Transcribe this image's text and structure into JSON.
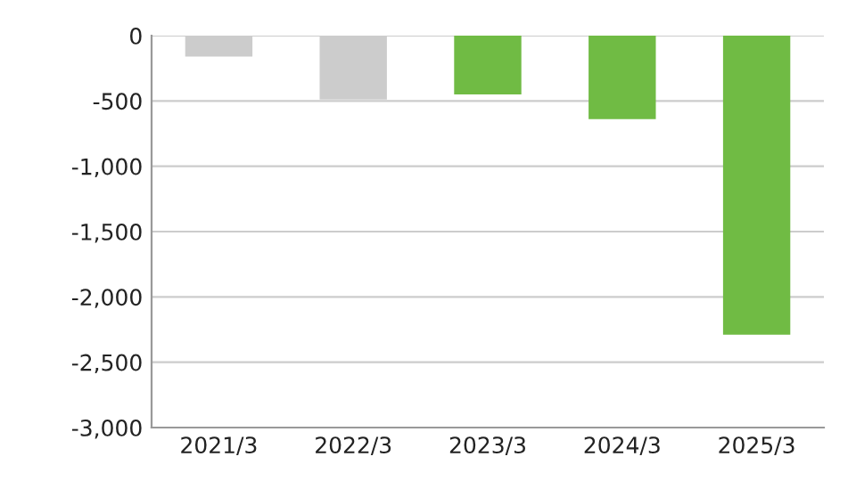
{
  "chart_data": {
    "type": "bar",
    "categories": [
      "2021/3",
      "2022/3",
      "2023/3",
      "2024/3",
      "2025/3"
    ],
    "values": [
      -160,
      -490,
      -450,
      -640,
      -2290
    ],
    "colors": [
      "#cccccc",
      "#cccccc",
      "#70bb44",
      "#70bb44",
      "#70bb44"
    ],
    "ylim": [
      -3000,
      0
    ],
    "yticks": [
      {
        "value": 0,
        "label": "0"
      },
      {
        "value": -500,
        "label": "-500"
      },
      {
        "value": -1000,
        "label": "-1,000"
      },
      {
        "value": -1500,
        "label": "-1,500"
      },
      {
        "value": -2000,
        "label": "-2,000"
      },
      {
        "value": -2500,
        "label": "-2,500"
      },
      {
        "value": -3000,
        "label": "-3,000"
      }
    ],
    "grid": "y"
  }
}
